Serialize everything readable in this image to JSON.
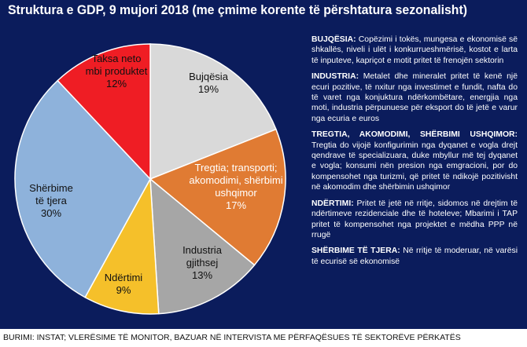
{
  "title": "Struktura e GDP, 9 mujori 2018 (me çmime korente të përshtatura sezonalisht)",
  "source": "BURIMI: INSTAT; VLERËSIME TË MONITOR, BAZUAR NË INTERVISTA ME PËRFAQËSUES TË SEKTORËVE PËRKATËS",
  "colors": {
    "background": "#0b1c5c",
    "bujqesia": "#d9d9d9",
    "tregtia": "#e07b33",
    "industria": "#a6a6a6",
    "ndertimi": "#f5c02a",
    "sherbime": "#8eb2db",
    "taksa": "#ef1d24"
  },
  "chart_data": {
    "type": "pie",
    "title": "Struktura e GDP, 9 mujori 2018 (me çmime korente të përshtatura sezonalisht)",
    "start": "top, clockwise",
    "slices": [
      {
        "key": "bujqesia",
        "label_lines": [
          "Bujqësia"
        ],
        "value_label": "19%",
        "value": 19,
        "text_color": "#111111"
      },
      {
        "key": "tregtia",
        "label_lines": [
          "Tregtia; transporti;",
          "akomodimi, shërbimi",
          "ushqimor"
        ],
        "value_label": "17%",
        "value": 17,
        "text_color": "#ffffff"
      },
      {
        "key": "industria",
        "label_lines": [
          "Industria",
          "gjithsej"
        ],
        "value_label": "13%",
        "value": 13,
        "text_color": "#111111"
      },
      {
        "key": "ndertimi",
        "label_lines": [
          "Ndërtimi"
        ],
        "value_label": "9%",
        "value": 9,
        "text_color": "#111111"
      },
      {
        "key": "sherbime",
        "label_lines": [
          "Shërbime",
          "të tjera"
        ],
        "value_label": "30%",
        "value": 30,
        "text_color": "#111111"
      },
      {
        "key": "taksa",
        "label_lines": [
          "Taksa neto",
          "mbi produktet"
        ],
        "value_label": "12%",
        "value": 12,
        "text_color": "#111111"
      }
    ]
  },
  "notes": [
    {
      "heading": "BUJQËSIA:",
      "text": "Copëzimi i tokës, mungesa e ekonomisë së shkallës, niveli i ulët i konkurrueshmërisë, kostot e larta të inputeve, kapriçot e motit pritet të frenojën sektorin"
    },
    {
      "heading": "INDUSTRIA:",
      "text": "Metalet dhe mineralet pritet të kenë një ecuri pozitive, të nxitur nga investimet e fundit, nafta do të varet nga konjuktura ndërkombëtare, energjia nga moti, industria përpunuese për eksport do të jetë e varur nga ecuria e euros"
    },
    {
      "heading": "TREGTIA, AKOMODIMI, SHËRBIMI USHQIMOR:",
      "text": "Tregtia do vijojë konfigurimin nga dyqanet e vogla drejt qendrave të specializuara, duke mbyllur më tej dyqanet e vogla; konsumi nën presion nga emgracioni, por do kompensohet nga turizmi, që pritet të ndikojë pozitivisht në akomodim dhe shërbimin ushqimor"
    },
    {
      "heading": "NDËRTIMI:",
      "text": "Pritet të jetë në rritje, sidomos në drejtim të ndërtimeve rezidenciale dhe të hoteleve; Mbarimi i TAP pritet të kompensohet nga projektet e mëdha PPP në rrugë"
    },
    {
      "heading": "SHËRBIME TË TJERA:",
      "text": "Në rritje të moderuar, në varësi të ecurisë së ekonomisë"
    }
  ]
}
